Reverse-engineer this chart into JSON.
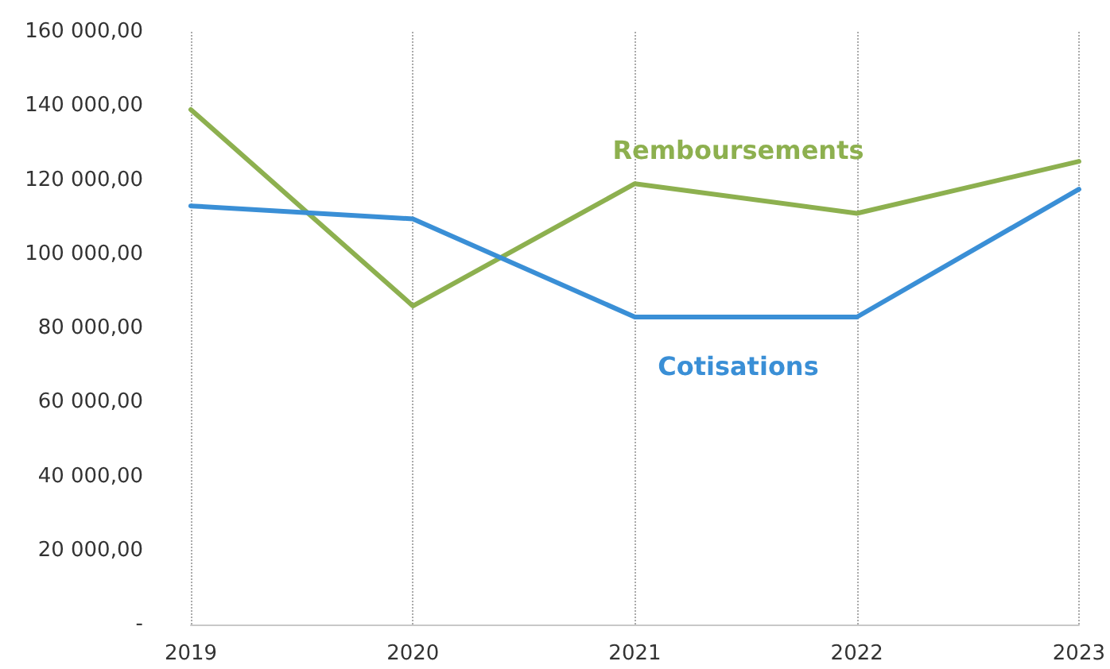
{
  "chart_data": {
    "type": "line",
    "categories": [
      "2019",
      "2020",
      "2021",
      "2022",
      "2023"
    ],
    "series": [
      {
        "name": "Remboursements",
        "color": "#8db04f",
        "values": [
          139000,
          86000,
          119000,
          111000,
          125000
        ]
      },
      {
        "name": "Cotisations",
        "color": "#3a8fd6",
        "values": [
          113000,
          109500,
          83000,
          83000,
          117500
        ]
      }
    ],
    "ylim": [
      0,
      160000
    ],
    "yticks": [
      {
        "value": 0,
        "label": "-"
      },
      {
        "value": 20000,
        "label": "20 000,00"
      },
      {
        "value": 40000,
        "label": "40 000,00"
      },
      {
        "value": 60000,
        "label": "60 000,00"
      },
      {
        "value": 80000,
        "label": "80 000,00"
      },
      {
        "value": 100000,
        "label": "100 000,00"
      },
      {
        "value": 120000,
        "label": "120 000,00"
      },
      {
        "value": 140000,
        "label": "140 000,00"
      },
      {
        "value": 160000,
        "label": "160 000,00"
      }
    ],
    "grid": "x",
    "legend": false,
    "marker": "none",
    "line_style": "solid"
  }
}
